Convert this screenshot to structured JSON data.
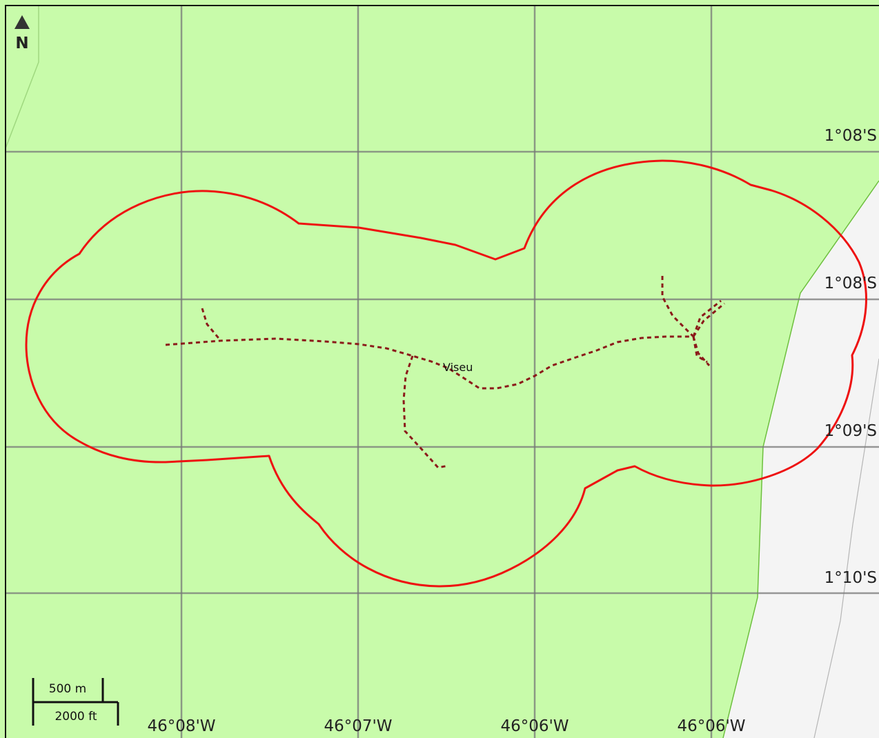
{
  "map": {
    "place_label": "Viseu",
    "north_label": "N",
    "lat_labels": [
      "1°08'S",
      "1°08'S",
      "1°09'S",
      "1°10'S"
    ],
    "lon_labels": [
      "46°08'W",
      "46°07'W",
      "46°06'W",
      "46°06'W"
    ],
    "scale": {
      "metric": "500 m",
      "imperial": "2000 ft"
    },
    "colors": {
      "land": "#c8fbaa",
      "outside": "#f4f4f4",
      "boundary": "#ee1111",
      "track": "#8b1a1a",
      "grid": "#777777"
    }
  }
}
